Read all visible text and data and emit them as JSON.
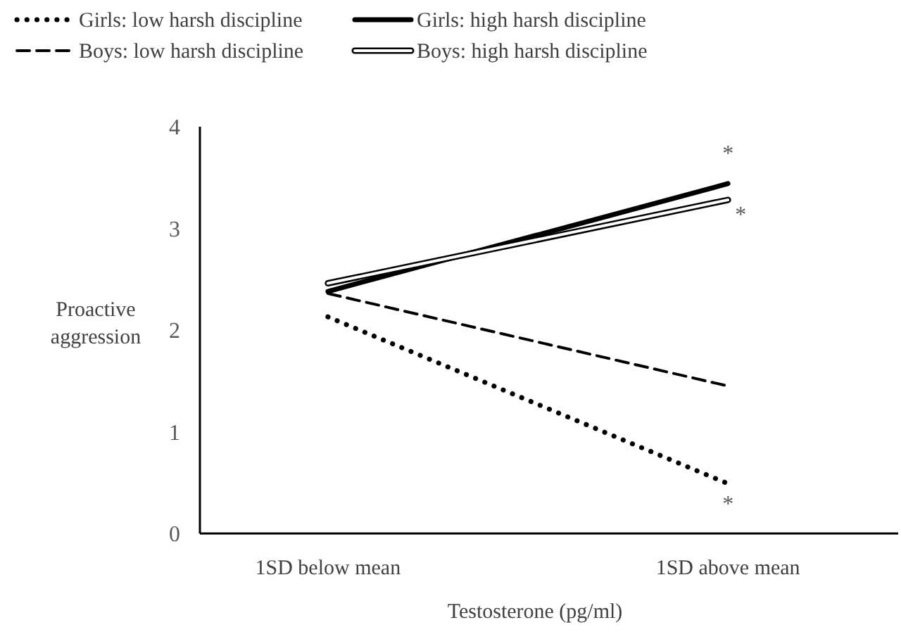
{
  "chart_data": {
    "type": "line",
    "xlabel": "Testosterone (pg/ml)",
    "ylabel": "Proactive aggression",
    "categories": [
      "1SD below mean",
      "1SD above mean"
    ],
    "series": [
      {
        "name": "Girls: low harsh discipline",
        "color": "#000000",
        "line_style": "dotted",
        "values": [
          2.13,
          0.49
        ]
      },
      {
        "name": "Girls: high harsh discipline",
        "color": "#000000",
        "line_style": "solid",
        "values": [
          2.38,
          3.44
        ]
      },
      {
        "name": "Boys: low harsh discipline",
        "color": "#000000",
        "line_style": "dashed",
        "values": [
          2.36,
          1.45
        ]
      },
      {
        "name": "Boys: high harsh discipline",
        "color": "#ffffff",
        "line_style": "solid",
        "values": [
          2.46,
          3.28
        ]
      }
    ],
    "ylim": [
      0,
      4
    ],
    "yticks": [
      0,
      1,
      2,
      3,
      4
    ],
    "grid": false,
    "legend": "top",
    "marker": "none",
    "annotations": [
      {
        "text": "*",
        "x": "1SD above mean",
        "y": 3.44
      },
      {
        "text": "*",
        "x": "1SD above mean",
        "y": 3.28
      },
      {
        "text": "*",
        "x": "1SD above mean",
        "y": 0.49
      }
    ]
  }
}
